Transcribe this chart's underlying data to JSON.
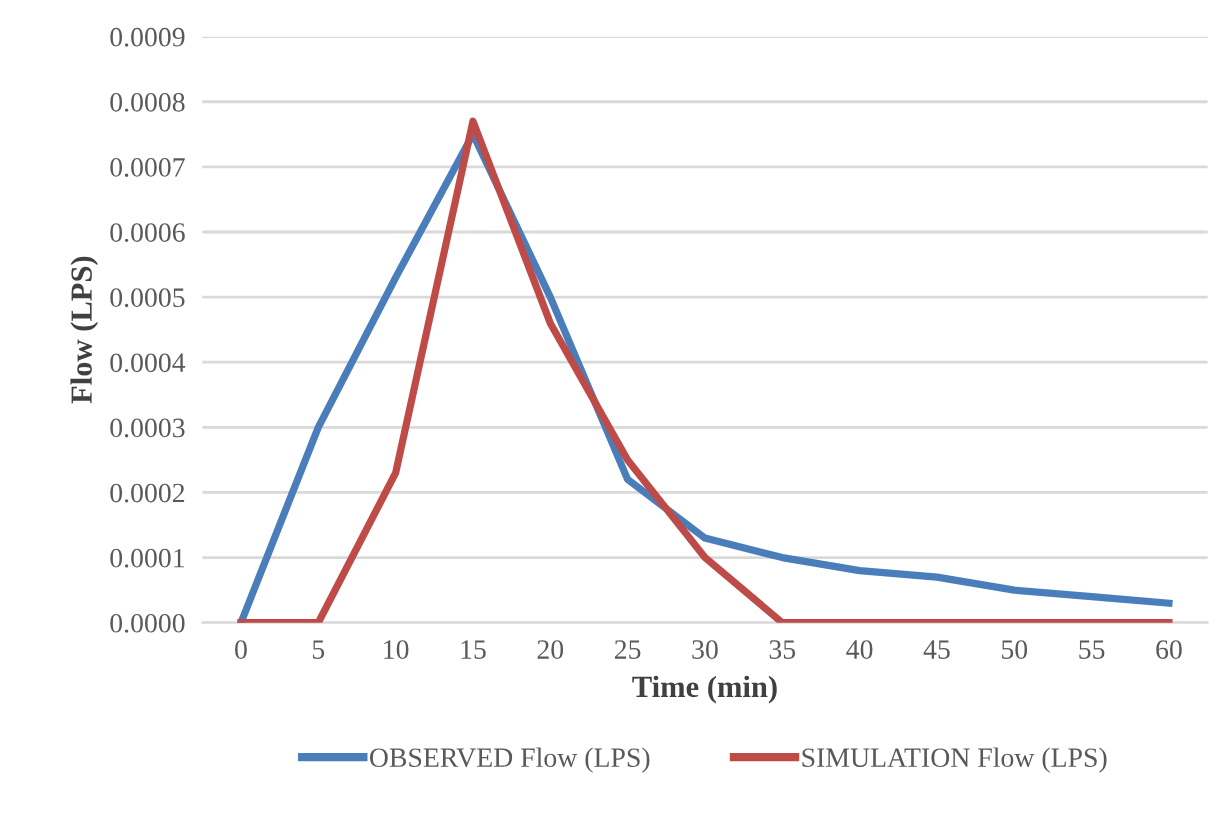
{
  "chart_data": {
    "type": "line",
    "xlabel": "Time (min)",
    "ylabel": "Flow (LPS)",
    "categories": [
      "0",
      "5",
      "10",
      "15",
      "20",
      "25",
      "30",
      "35",
      "40",
      "45",
      "50",
      "55",
      "60"
    ],
    "series": [
      {
        "name": "OBSERVED Flow (LPS)",
        "color": "#4a7ebb",
        "values": [
          0,
          0.0003,
          0.00053,
          0.00075,
          0.0005,
          0.00022,
          0.00013,
          0.0001,
          8e-05,
          7e-05,
          5e-05,
          4e-05,
          3e-05
        ]
      },
      {
        "name": "SIMULATION Flow (LPS)",
        "color": "#be4b48",
        "values": [
          0,
          0,
          0.00023,
          0.00077,
          0.00046,
          0.00025,
          0.0001,
          0,
          0,
          0,
          0,
          0,
          0
        ]
      }
    ],
    "ylim": [
      0,
      0.0009
    ],
    "yticks": [
      {
        "value": 0,
        "label": "0.0000"
      },
      {
        "value": 0.0001,
        "label": "0.0001"
      },
      {
        "value": 0.0002,
        "label": "0.0002"
      },
      {
        "value": 0.0003,
        "label": "0.0003"
      },
      {
        "value": 0.0004,
        "label": "0.0004"
      },
      {
        "value": 0.0005,
        "label": "0.0005"
      },
      {
        "value": 0.0006,
        "label": "0.0006"
      },
      {
        "value": 0.0007,
        "label": "0.0007"
      },
      {
        "value": 0.0008,
        "label": "0.0008"
      },
      {
        "value": 0.0009,
        "label": "0.0009"
      }
    ],
    "grid": "y",
    "legend": "bottom",
    "marker": "none",
    "line_style": "solid"
  }
}
